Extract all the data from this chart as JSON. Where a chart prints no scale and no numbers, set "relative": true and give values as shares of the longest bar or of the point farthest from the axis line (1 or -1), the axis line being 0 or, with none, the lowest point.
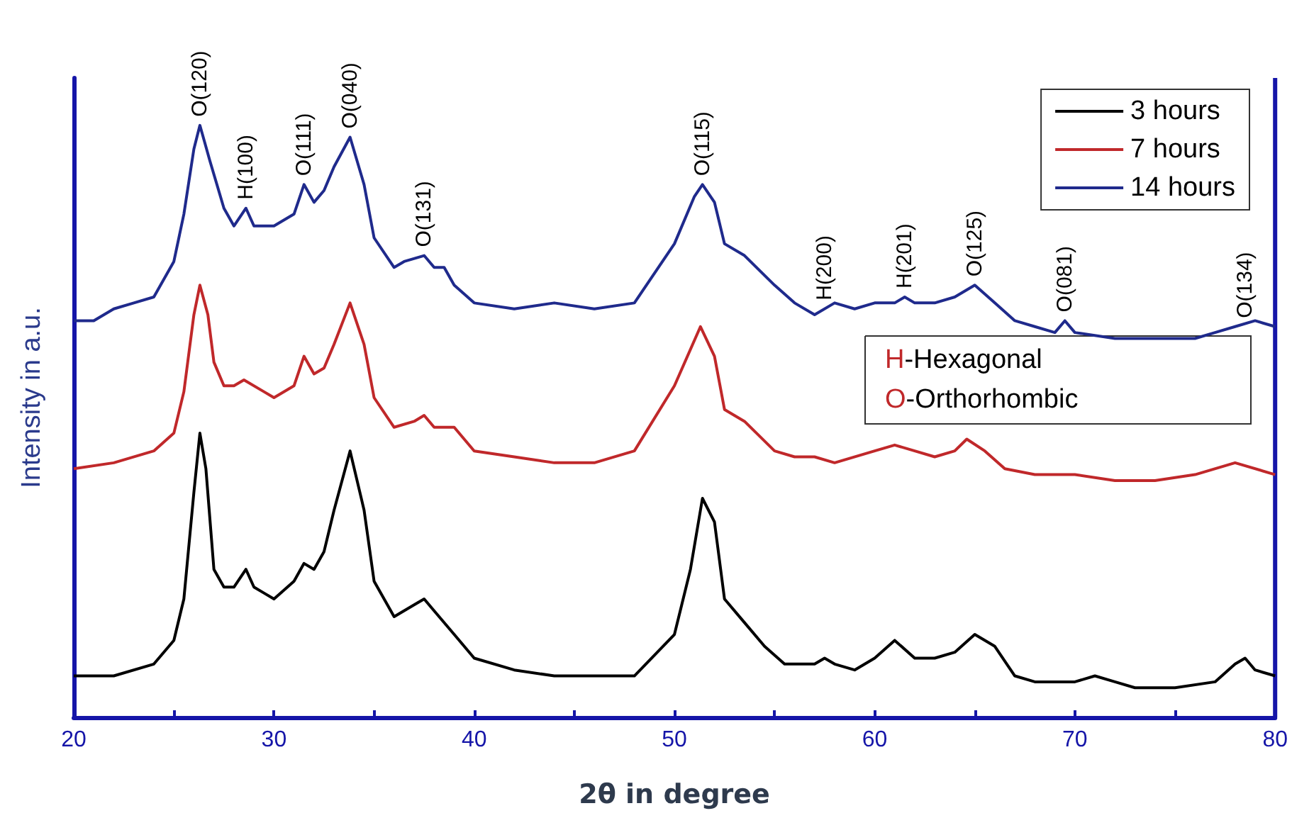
{
  "chart_data": {
    "type": "line",
    "relative": true,
    "xlabel": "2θ in degree",
    "ylabel": "Intensity in a.u.",
    "xlim": [
      20,
      80
    ],
    "xticks": [
      20,
      {
        "value": 25,
        "label": null
      },
      30,
      {
        "value": 35,
        "label": null
      },
      40,
      {
        "value": 45,
        "label": null
      },
      50,
      {
        "value": 55,
        "label": null
      },
      60,
      {
        "value": 65,
        "label": null
      },
      70,
      {
        "value": 75,
        "label": null
      },
      80
    ],
    "legend": "top right",
    "marker": "none",
    "line_style": "solid",
    "series": [
      {
        "name": "3 hours",
        "color": "#000000",
        "x": [
          20,
          22,
          24,
          25,
          25.5,
          26,
          26.3,
          26.6,
          27,
          27.5,
          28,
          28.6,
          29,
          29.5,
          30,
          31,
          31.5,
          32,
          32.5,
          33,
          33.8,
          34.5,
          35,
          36,
          37,
          37.5,
          38,
          39,
          40,
          42,
          44,
          46,
          48,
          50,
          50.8,
          51.4,
          52,
          52.5,
          53.5,
          54.5,
          55.5,
          57,
          57.5,
          58,
          59,
          60,
          61,
          62,
          63,
          64,
          65,
          66,
          67,
          68,
          70,
          71,
          72,
          73,
          75,
          77,
          78,
          78.5,
          79,
          80
        ],
        "values": [
          0.07,
          0.07,
          0.09,
          0.13,
          0.2,
          0.38,
          0.48,
          0.42,
          0.25,
          0.22,
          0.22,
          0.25,
          0.22,
          0.21,
          0.2,
          0.23,
          0.26,
          0.25,
          0.28,
          0.35,
          0.45,
          0.35,
          0.23,
          0.17,
          0.19,
          0.2,
          0.18,
          0.14,
          0.1,
          0.08,
          0.07,
          0.07,
          0.07,
          0.14,
          0.25,
          0.37,
          0.33,
          0.2,
          0.16,
          0.12,
          0.09,
          0.09,
          0.1,
          0.09,
          0.08,
          0.1,
          0.13,
          0.1,
          0.1,
          0.11,
          0.14,
          0.12,
          0.07,
          0.06,
          0.06,
          0.07,
          0.06,
          0.05,
          0.05,
          0.06,
          0.09,
          0.1,
          0.08,
          0.07
        ]
      },
      {
        "name": "7 hours",
        "color": "#c0282a",
        "x": [
          20,
          22,
          24,
          25,
          25.5,
          26,
          26.3,
          26.7,
          27,
          27.5,
          28,
          28.5,
          29.5,
          30,
          31,
          31.5,
          32,
          32.5,
          33,
          33.8,
          34.5,
          35,
          36,
          37,
          37.5,
          38,
          39,
          40,
          42,
          44,
          46,
          48,
          50,
          51.3,
          52,
          52.5,
          53.5,
          55,
          56,
          57,
          58,
          60,
          61,
          62,
          63,
          64,
          64.6,
          65.5,
          66.5,
          68,
          70,
          72,
          74,
          76,
          78,
          80
        ],
        "values": [
          0.42,
          0.43,
          0.45,
          0.48,
          0.55,
          0.68,
          0.73,
          0.68,
          0.6,
          0.56,
          0.56,
          0.57,
          0.55,
          0.54,
          0.56,
          0.61,
          0.58,
          0.59,
          0.63,
          0.7,
          0.63,
          0.54,
          0.49,
          0.5,
          0.51,
          0.49,
          0.49,
          0.45,
          0.44,
          0.43,
          0.43,
          0.45,
          0.56,
          0.66,
          0.61,
          0.52,
          0.5,
          0.45,
          0.44,
          0.44,
          0.43,
          0.45,
          0.46,
          0.45,
          0.44,
          0.45,
          0.47,
          0.45,
          0.42,
          0.41,
          0.41,
          0.4,
          0.4,
          0.41,
          0.43,
          0.41
        ]
      },
      {
        "name": "14 hours",
        "color": "#1f2a8c",
        "x": [
          20,
          21,
          22,
          23,
          24,
          25,
          25.5,
          26,
          26.3,
          26.8,
          27.5,
          28,
          28.6,
          29,
          30,
          31,
          31.5,
          32,
          32.5,
          33,
          33.8,
          34.5,
          35,
          36,
          36.5,
          37.5,
          38,
          38.5,
          39,
          40,
          42,
          44,
          46,
          48,
          50,
          51,
          51.4,
          52,
          52.5,
          53.5,
          55,
          56,
          57,
          58,
          59,
          60,
          61,
          61.5,
          62,
          63,
          64,
          65,
          66,
          67,
          68,
          69,
          69.5,
          70,
          72,
          74,
          76,
          77,
          78,
          79,
          80
        ],
        "values": [
          0.67,
          0.67,
          0.69,
          0.7,
          0.71,
          0.77,
          0.85,
          0.96,
          1,
          0.94,
          0.86,
          0.83,
          0.86,
          0.83,
          0.83,
          0.85,
          0.9,
          0.87,
          0.89,
          0.93,
          0.98,
          0.9,
          0.81,
          0.76,
          0.77,
          0.78,
          0.76,
          0.76,
          0.73,
          0.7,
          0.69,
          0.7,
          0.69,
          0.7,
          0.8,
          0.88,
          0.9,
          0.87,
          0.8,
          0.78,
          0.73,
          0.7,
          0.68,
          0.7,
          0.69,
          0.7,
          0.7,
          0.71,
          0.7,
          0.7,
          0.71,
          0.73,
          0.7,
          0.67,
          0.66,
          0.65,
          0.67,
          0.65,
          0.64,
          0.64,
          0.64,
          0.65,
          0.66,
          0.67,
          0.66
        ]
      }
    ],
    "annotations": [
      {
        "text": "O(120)",
        "x": 26.3,
        "y": 1
      },
      {
        "text": "H(100)",
        "x": 28.6,
        "y": 0.86
      },
      {
        "text": "O(111)",
        "x": 31.5,
        "y": 0.9
      },
      {
        "text": "O(040)",
        "x": 33.8,
        "y": 0.98
      },
      {
        "text": "O(131)",
        "x": 37.5,
        "y": 0.78
      },
      {
        "text": "O(115)",
        "x": 51.4,
        "y": 0.9
      },
      {
        "text": "H(200)",
        "x": 57.5,
        "y": 0.69
      },
      {
        "text": "H(201)",
        "x": 61.5,
        "y": 0.71
      },
      {
        "text": "O(125)",
        "x": 65,
        "y": 0.73
      },
      {
        "text": "O(081)",
        "x": 69.5,
        "y": 0.67
      },
      {
        "text": "O(134)",
        "x": 78.5,
        "y": 0.66
      },
      "H-Hexagonal",
      "O-Orthorhombic"
    ]
  }
}
